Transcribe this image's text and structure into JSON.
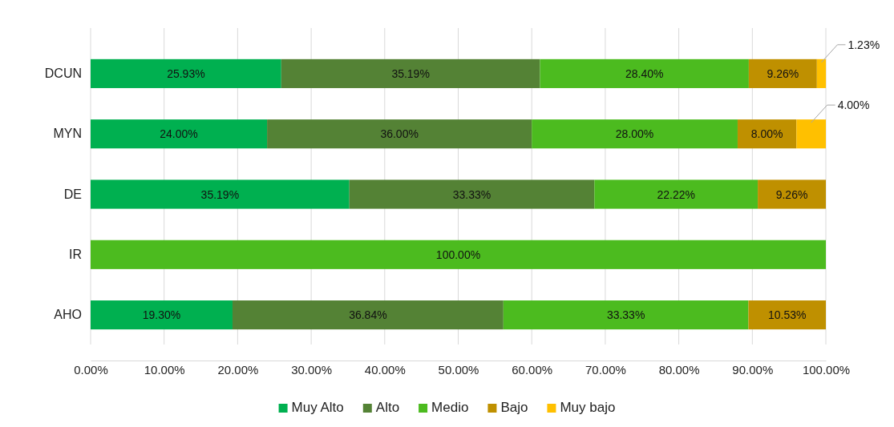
{
  "chart_data": {
    "type": "bar",
    "orientation": "horizontal",
    "stacked": true,
    "categories": [
      "DCUN",
      "MYN",
      "DE",
      "IR",
      "AHO"
    ],
    "series": [
      {
        "name": "Muy Alto",
        "color": "#00b050",
        "values": [
          25.93,
          24,
          35.19,
          null,
          19.3
        ],
        "value_labels": [
          "25.93%",
          "24.00%",
          "35.19%",
          null,
          "19.30%"
        ]
      },
      {
        "name": "Alto",
        "color": "#548235",
        "values": [
          35.19,
          36,
          33.33,
          null,
          36.84
        ],
        "value_labels": [
          "35.19%",
          "36.00%",
          "33.33%",
          null,
          "36.84%"
        ]
      },
      {
        "name": "Medio",
        "color": "#4cbb1f",
        "values": [
          28.4,
          28,
          22.22,
          100,
          33.33
        ],
        "value_labels": [
          "28.40%",
          "28.00%",
          "22.22%",
          "100.00%",
          "33.33%"
        ]
      },
      {
        "name": "Bajo",
        "color": "#bf9000",
        "values": [
          9.26,
          8,
          9.26,
          null,
          10.53
        ],
        "value_labels": [
          "9.26%",
          "8.00%",
          "9.26%",
          null,
          "10.53%"
        ]
      },
      {
        "name": "Muy bajo",
        "color": "#ffc000",
        "values": [
          1.23,
          4,
          null,
          null,
          null
        ],
        "value_labels": [
          "1.23%",
          "4.00%",
          null,
          null,
          null
        ]
      }
    ],
    "xlim": [
      0,
      100
    ],
    "xticks": [
      {
        "value": 0,
        "label": "0.00%"
      },
      {
        "value": 10,
        "label": "10.00%"
      },
      {
        "value": 20,
        "label": "20.00%"
      },
      {
        "value": 30,
        "label": "30.00%"
      },
      {
        "value": 40,
        "label": "40.00%"
      },
      {
        "value": 50,
        "label": "50.00%"
      },
      {
        "value": 60,
        "label": "60.00%"
      },
      {
        "value": 70,
        "label": "70.00%"
      },
      {
        "value": 80,
        "label": "80.00%"
      },
      {
        "value": 90,
        "label": "90.00%"
      },
      {
        "value": 100,
        "label": "100.00%"
      }
    ],
    "grid": "x",
    "legend": "bottom"
  }
}
